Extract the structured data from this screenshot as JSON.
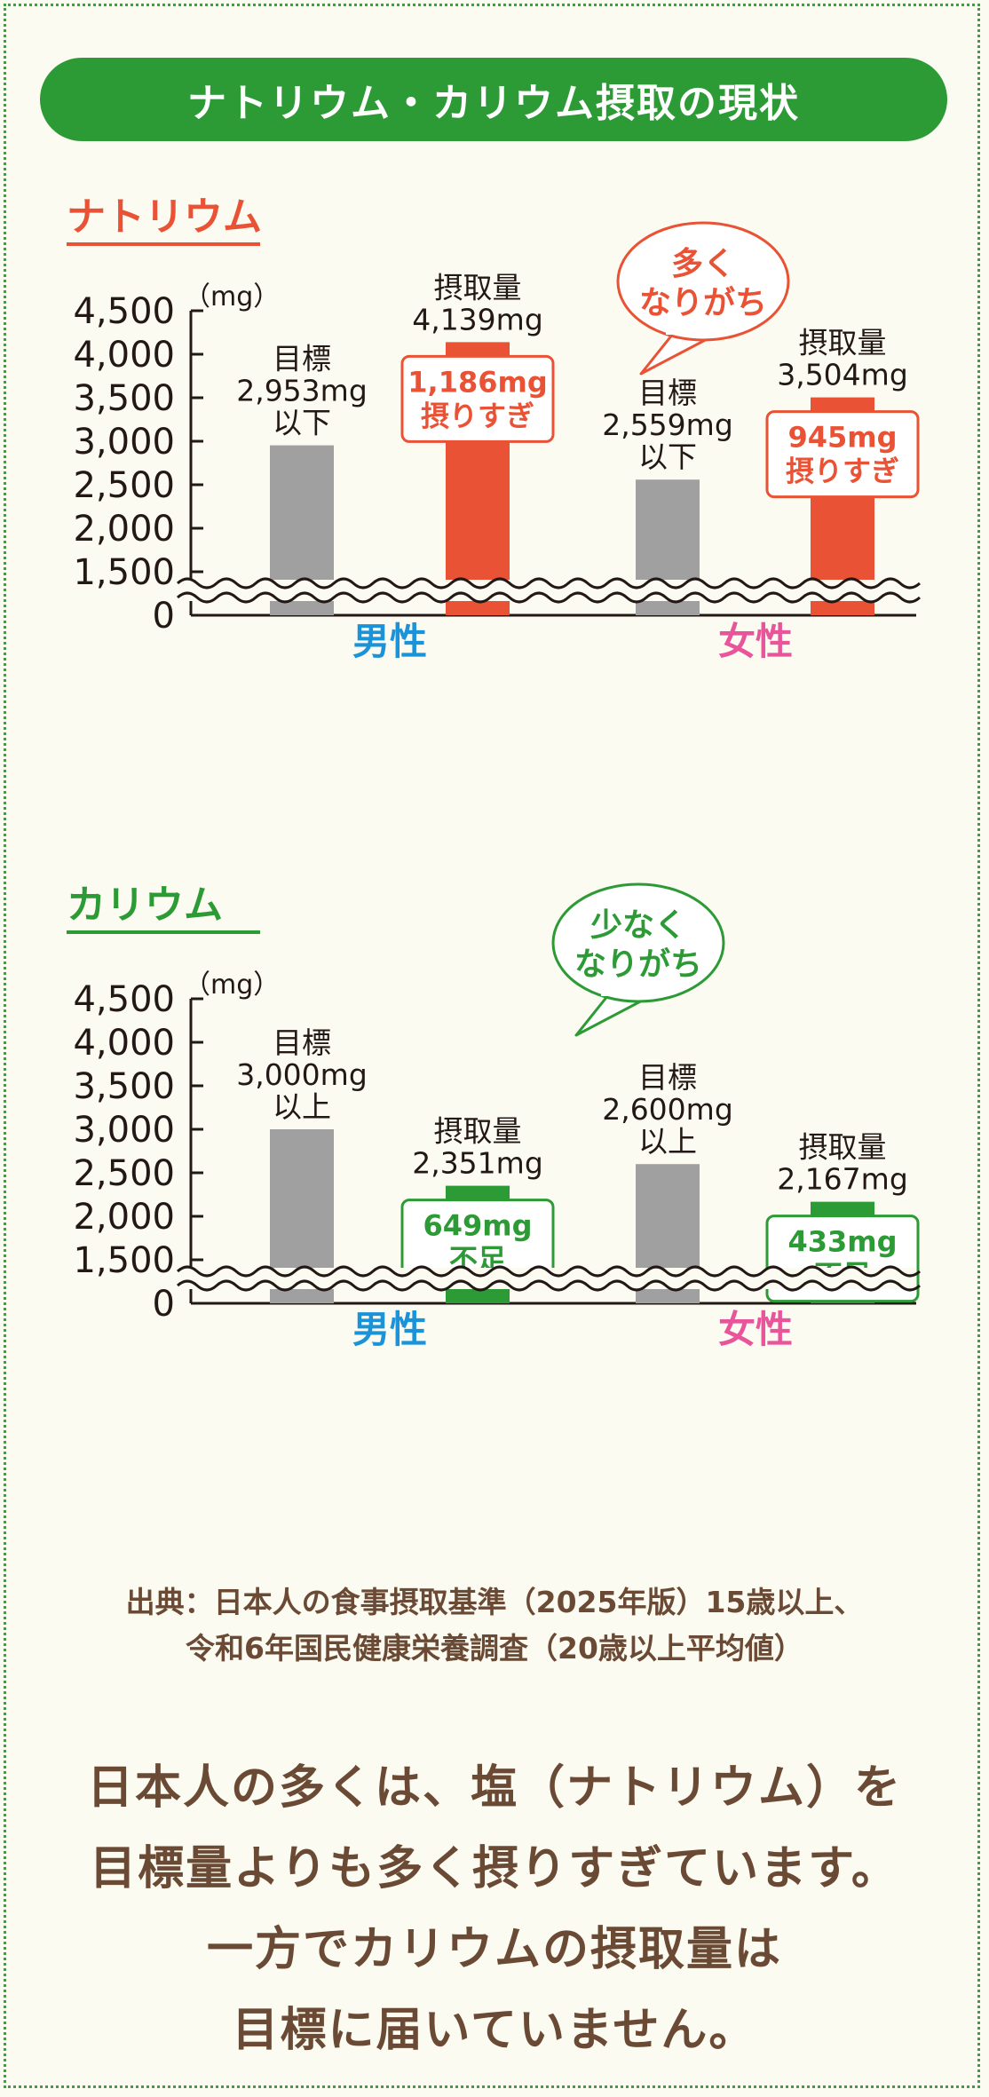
{
  "banner": {
    "title": "ナトリウム・カリウム摂取の現状"
  },
  "colors": {
    "green": "#2c9a35",
    "orange": "#e95234",
    "gray": "#a0a0a0",
    "male_label": "#1b93d9",
    "female_label": "#e8559a",
    "text_brown": "#6b4a35",
    "text_dark": "#231815"
  },
  "chart_data": [
    {
      "type": "bar",
      "title": "ナトリウム",
      "unit_label": "（mg）",
      "categories": [
        "男性",
        "女性"
      ],
      "y_ticks": [
        "4,500",
        "4,000",
        "3,500",
        "3,000",
        "2,500",
        "2,000",
        "1,500",
        "0"
      ],
      "ylim": [
        1500,
        4500
      ],
      "axis_break": true,
      "series": [
        {
          "kind": "target",
          "values": [
            2953,
            2559
          ],
          "labels": [
            [
              "目標",
              "2,953mg",
              "以下"
            ],
            [
              "目標",
              "2,559mg",
              "以下"
            ]
          ]
        },
        {
          "kind": "intake",
          "values": [
            4139,
            3504
          ],
          "labels": [
            [
              "摂取量",
              "4,139mg"
            ],
            [
              "摂取量",
              "3,504mg"
            ]
          ],
          "diff_labels": [
            [
              "1,186mg",
              "摂りすぎ"
            ],
            [
              "945mg",
              "摂りすぎ"
            ]
          ]
        }
      ],
      "bubble": [
        "多く",
        "なりがち"
      ]
    },
    {
      "type": "bar",
      "title": "カリウム",
      "unit_label": "（mg）",
      "categories": [
        "男性",
        "女性"
      ],
      "y_ticks": [
        "4,500",
        "4,000",
        "3,500",
        "3,000",
        "2,500",
        "2,000",
        "1,500",
        "0"
      ],
      "ylim": [
        1500,
        4500
      ],
      "axis_break": true,
      "series": [
        {
          "kind": "target",
          "values": [
            3000,
            2600
          ],
          "labels": [
            [
              "目標",
              "3,000mg",
              "以上"
            ],
            [
              "目標",
              "2,600mg",
              "以上"
            ]
          ]
        },
        {
          "kind": "intake",
          "values": [
            2351,
            2167
          ],
          "labels": [
            [
              "摂取量",
              "2,351mg"
            ],
            [
              "摂取量",
              "2,167mg"
            ]
          ],
          "diff_labels": [
            [
              "649mg",
              "不足"
            ],
            [
              "433mg",
              "不足"
            ]
          ]
        }
      ],
      "bubble": [
        "少なく",
        "なりがち"
      ]
    }
  ],
  "source": {
    "line1": "出典：日本人の食事摂取基準（2025年版）15歳以上、",
    "line2": "令和6年国民健康栄養調査（20歳以上平均値）"
  },
  "message": {
    "line1": "日本人の多くは、塩（ナトリウム）を",
    "line2": "目標量よりも多く摂りすぎています。",
    "line3": "一方でカリウムの摂取量は",
    "line4": "目標に届いていません。"
  }
}
